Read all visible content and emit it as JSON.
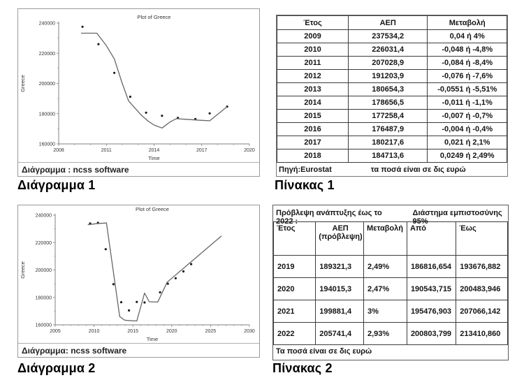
{
  "labels": {
    "diagram1": "Διάγραμμα 1",
    "table1": "Πίνακας 1",
    "diagram2": "Διάγραμμα 2",
    "table2": "Πίνακας 2"
  },
  "colors": {
    "line": "#666666",
    "dot": "#1c1c1c",
    "axis": "#808080",
    "tick_text": "#333333",
    "panel_border": "#9a9a9a",
    "table_border": "#3c3c3c"
  },
  "chart_data": [
    {
      "type": "line",
      "title": "Plot of Greece",
      "xlabel": "Time",
      "ylabel": "Greece",
      "xlim": [
        2008,
        2020
      ],
      "ylim": [
        160000,
        240000
      ],
      "xticks": [
        2008,
        2011,
        2014,
        2017,
        2020
      ],
      "yticks": [
        160000,
        180000,
        200000,
        220000,
        240000
      ],
      "x_minor_step": 1,
      "y_minor_step": 10000,
      "caption": "Διάγραμμα : ncss software",
      "series": [
        {
          "name": "observed-points",
          "style": "scatter",
          "x": [
            2009.5,
            2010.5,
            2011.5,
            2012.5,
            2013.5,
            2014.5,
            2015.5,
            2016.6,
            2017.5,
            2018.6
          ],
          "y": [
            237534,
            226031,
            207029,
            191204,
            180654,
            178657,
            177258,
            176488,
            180218,
            184714
          ]
        },
        {
          "name": "fitted-line",
          "style": "line",
          "x": [
            2009.4,
            2010.4,
            2011.0,
            2011.5,
            2012.0,
            2012.4,
            2013.2,
            2013.6,
            2014.0,
            2014.5,
            2015.0,
            2015.4,
            2016.0,
            2017.0,
            2017.5,
            2018.6
          ],
          "y": [
            233300,
            233300,
            225000,
            216300,
            200000,
            188400,
            179000,
            175300,
            172500,
            170500,
            174500,
            176700,
            176300,
            175600,
            175300,
            184600
          ]
        }
      ]
    },
    {
      "type": "line",
      "title": "Plot of Greece",
      "xlabel": "Time",
      "ylabel": "Greece",
      "xlim": [
        2005,
        2030
      ],
      "ylim": [
        160000,
        240000
      ],
      "xticks": [
        2005,
        2010,
        2015,
        2020,
        2025,
        2030
      ],
      "yticks": [
        160000,
        180000,
        200000,
        220000,
        240000
      ],
      "x_minor_step": 1,
      "y_minor_step": 10000,
      "caption": "Διάγραμμα: ncss software",
      "series": [
        {
          "name": "observed-and-forecast-points",
          "style": "scatter",
          "x": [
            2009.5,
            2010.5,
            2011.5,
            2012.5,
            2013.5,
            2014.5,
            2015.5,
            2016.5,
            2018.5,
            2019.5,
            2020.5,
            2021.5,
            2022.5
          ],
          "y": [
            234000,
            234400,
            215200,
            189600,
            176500,
            170500,
            176700,
            176300,
            183700,
            190000,
            194000,
            199000,
            204300
          ]
        },
        {
          "name": "fitted-forecast-line",
          "style": "line",
          "x": [
            2009.2,
            2010.3,
            2011.6,
            2013.3,
            2013.9,
            2014.2,
            2015.5,
            2016.5,
            2017.1,
            2018.2,
            2019.4,
            2019.7,
            2026.4
          ],
          "y": [
            233000,
            233800,
            234300,
            166000,
            163500,
            163200,
            162800,
            183200,
            176800,
            176600,
            191000,
            192500,
            224800
          ]
        }
      ]
    }
  ],
  "tables": [
    {
      "headers": [
        "Έτος",
        "ΑΕΠ",
        "Μεταβολή"
      ],
      "rows": [
        [
          "2009",
          "237534,2",
          "0,04 ή 4%"
        ],
        [
          "2010",
          "226031,4",
          "-0,048 ή -4,8%"
        ],
        [
          "2011",
          "207028,9",
          "-0,084 ή -8,4%"
        ],
        [
          "2012",
          "191203,9",
          "-0,076 ή -7,6%"
        ],
        [
          "2013",
          "180654,3",
          "-0,0551 ή -5,51%"
        ],
        [
          "2014",
          "178656,5",
          "-0,011 ή -1,1%"
        ],
        [
          "2015",
          "177258,4",
          "-0,007 ή -0,7%"
        ],
        [
          "2016",
          "176487,9",
          "-0,004 ή -0,4%"
        ],
        [
          "2017",
          "180217,6",
          "0,021 ή 2,1%"
        ],
        [
          "2018",
          "184713,6",
          "0,0249 ή 2,49%"
        ]
      ],
      "footer_left": "Πηγή:Eurostat",
      "footer_right": "τα ποσά είναι σε δις ευρώ"
    },
    {
      "title_left": "Πρόβλεψη ανάπτυξης έως το 2022 :",
      "title_right": "Διάστημα εμπιστοσύνης 95%",
      "headers": [
        "Έτος",
        "ΑΕΠ (πρόβλεψη)",
        "Μεταβολή",
        "Από",
        "Έως"
      ],
      "rows": [
        [
          "2019",
          "189321,3",
          "2,49%",
          "186816,654",
          "193676,882"
        ],
        [
          "2020",
          "194015,3",
          "2,47%",
          "190543,715",
          "200483,946"
        ],
        [
          "2021",
          "199881,4",
          "3%",
          "195476,903",
          "207066,142"
        ],
        [
          "2022",
          "205741,4",
          "2,93%",
          "200803,799",
          "213410,860"
        ]
      ],
      "footer": "Τα ποσά είναι σε δις ευρώ"
    }
  ]
}
